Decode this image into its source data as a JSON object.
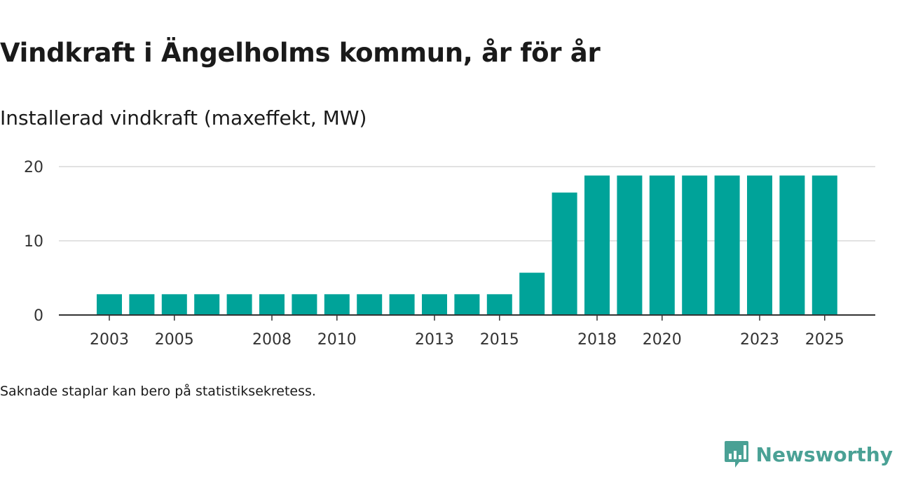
{
  "title": "Vindkraft i Ängelholms kommun, år för år",
  "subtitle": "Installerad vindkraft (maxeffekt, MW)",
  "note": "Saknade staplar kan bero på statistiksekretess.",
  "brand": {
    "name": "Newsworthy",
    "icon": "newsworthy-logo-icon",
    "color": "#4aa195"
  },
  "chart_data": {
    "type": "bar",
    "title": "Vindkraft i Ängelholms kommun, år för år",
    "ylabel": "Installerad vindkraft (maxeffekt, MW)",
    "xlabel": "",
    "categories": [
      "2003",
      "2004",
      "2005",
      "2006",
      "2007",
      "2008",
      "2009",
      "2010",
      "2011",
      "2012",
      "2013",
      "2014",
      "2015",
      "2016",
      "2017",
      "2018",
      "2019",
      "2020",
      "2021",
      "2022",
      "2023",
      "2024",
      "2025"
    ],
    "x_tick_labels": [
      "2003",
      "",
      "2005",
      "",
      "",
      "2008",
      "",
      "2010",
      "",
      "",
      "2013",
      "",
      "2015",
      "",
      "",
      "2018",
      "",
      "2020",
      "",
      "",
      "2023",
      "",
      "2025"
    ],
    "values": [
      2.8,
      2.8,
      2.8,
      2.8,
      2.8,
      2.8,
      2.8,
      2.8,
      2.8,
      2.8,
      2.8,
      2.8,
      2.8,
      5.7,
      16.5,
      18.8,
      18.8,
      18.8,
      18.8,
      18.8,
      18.8,
      18.8,
      18.8
    ],
    "y_ticks": [
      0,
      10,
      20
    ],
    "ylim": [
      0,
      20
    ],
    "grid": true,
    "bar_color": "#00a399",
    "legend": "none"
  }
}
